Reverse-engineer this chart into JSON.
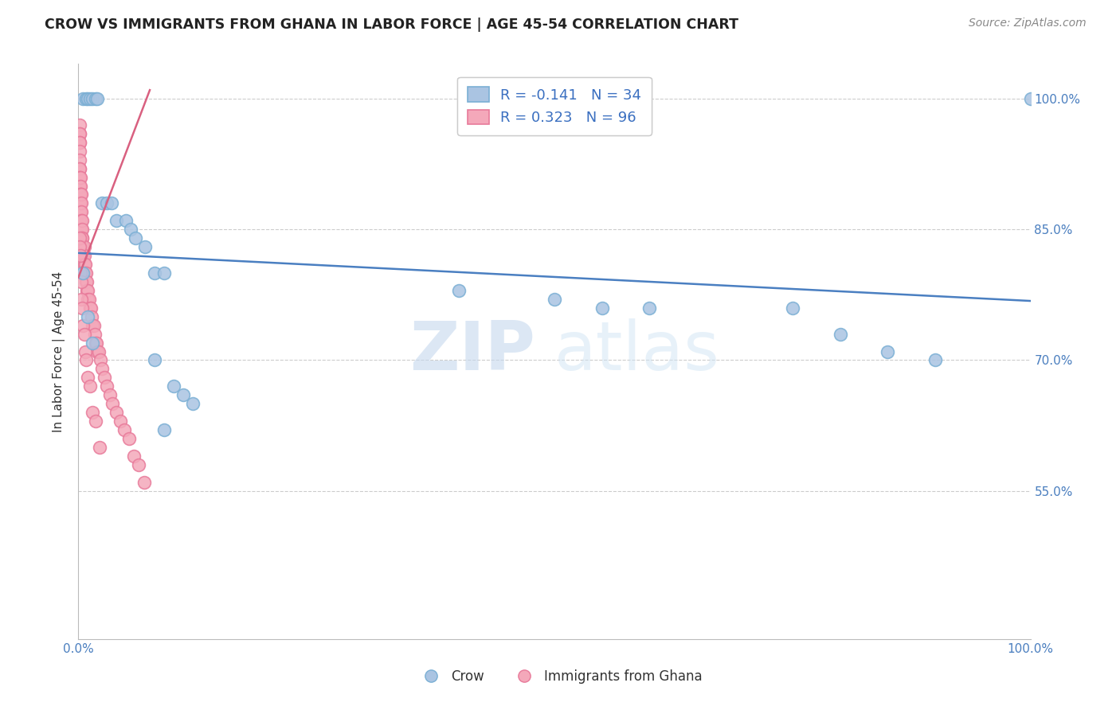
{
  "title": "CROW VS IMMIGRANTS FROM GHANA IN LABOR FORCE | AGE 45-54 CORRELATION CHART",
  "source": "Source: ZipAtlas.com",
  "ylabel": "In Labor Force | Age 45-54",
  "legend_label_crow": "Crow",
  "legend_label_ghana": "Immigrants from Ghana",
  "crow_R": -0.141,
  "crow_N": 34,
  "ghana_R": 0.323,
  "ghana_N": 96,
  "xlim": [
    0.0,
    1.0
  ],
  "ylim": [
    0.38,
    1.04
  ],
  "yticks": [
    0.55,
    0.7,
    0.85,
    1.0
  ],
  "ytick_labels": [
    "55.0%",
    "70.0%",
    "85.0%",
    "100.0%"
  ],
  "crow_color": "#aac4e2",
  "crow_edge_color": "#7aafd4",
  "ghana_color": "#f4a8ba",
  "ghana_edge_color": "#e87a9a",
  "crow_line_color": "#4a7fc1",
  "ghana_line_color": "#d96080",
  "background_color": "#ffffff",
  "watermark_zip": "ZIP",
  "watermark_atlas": "atlas",
  "crow_x": [
    0.005,
    0.008,
    0.01,
    0.012,
    0.015,
    0.018,
    0.02,
    0.025,
    0.03,
    0.035,
    0.04,
    0.05,
    0.055,
    0.06,
    0.07,
    0.08,
    0.09,
    0.1,
    0.11,
    0.12,
    0.005,
    0.01,
    0.015,
    0.08,
    0.09,
    0.4,
    0.5,
    0.55,
    0.6,
    0.75,
    0.8,
    0.85,
    0.9,
    1.0
  ],
  "crow_y": [
    1.0,
    1.0,
    1.0,
    1.0,
    1.0,
    1.0,
    1.0,
    0.88,
    0.88,
    0.88,
    0.86,
    0.86,
    0.85,
    0.84,
    0.83,
    0.8,
    0.8,
    0.67,
    0.66,
    0.65,
    0.8,
    0.75,
    0.72,
    0.7,
    0.62,
    0.78,
    0.77,
    0.76,
    0.76,
    0.76,
    0.73,
    0.71,
    0.7,
    1.0
  ],
  "ghana_x": [
    0.001,
    0.001,
    0.001,
    0.001,
    0.001,
    0.001,
    0.001,
    0.001,
    0.001,
    0.001,
    0.001,
    0.001,
    0.001,
    0.001,
    0.001,
    0.001,
    0.001,
    0.001,
    0.001,
    0.001,
    0.002,
    0.002,
    0.002,
    0.002,
    0.002,
    0.002,
    0.002,
    0.002,
    0.002,
    0.002,
    0.003,
    0.003,
    0.003,
    0.003,
    0.003,
    0.003,
    0.003,
    0.004,
    0.004,
    0.004,
    0.004,
    0.004,
    0.005,
    0.005,
    0.005,
    0.006,
    0.006,
    0.006,
    0.007,
    0.007,
    0.008,
    0.008,
    0.009,
    0.009,
    0.01,
    0.01,
    0.011,
    0.012,
    0.013,
    0.014,
    0.015,
    0.016,
    0.017,
    0.018,
    0.019,
    0.02,
    0.021,
    0.023,
    0.025,
    0.027,
    0.03,
    0.033,
    0.036,
    0.04,
    0.044,
    0.048,
    0.053,
    0.058,
    0.063,
    0.069,
    0.001,
    0.001,
    0.002,
    0.002,
    0.003,
    0.003,
    0.004,
    0.005,
    0.006,
    0.007,
    0.008,
    0.01,
    0.012,
    0.015,
    0.018,
    0.022
  ],
  "ghana_y": [
    0.97,
    0.96,
    0.96,
    0.95,
    0.95,
    0.94,
    0.93,
    0.92,
    0.92,
    0.91,
    0.91,
    0.9,
    0.9,
    0.89,
    0.89,
    0.88,
    0.88,
    0.87,
    0.86,
    0.85,
    0.91,
    0.9,
    0.89,
    0.89,
    0.88,
    0.87,
    0.87,
    0.86,
    0.85,
    0.84,
    0.89,
    0.88,
    0.87,
    0.86,
    0.85,
    0.85,
    0.84,
    0.86,
    0.85,
    0.84,
    0.84,
    0.83,
    0.83,
    0.82,
    0.82,
    0.83,
    0.82,
    0.81,
    0.81,
    0.8,
    0.8,
    0.79,
    0.79,
    0.78,
    0.78,
    0.77,
    0.77,
    0.76,
    0.76,
    0.75,
    0.74,
    0.74,
    0.73,
    0.72,
    0.72,
    0.71,
    0.71,
    0.7,
    0.69,
    0.68,
    0.67,
    0.66,
    0.65,
    0.64,
    0.63,
    0.62,
    0.61,
    0.59,
    0.58,
    0.56,
    0.84,
    0.83,
    0.82,
    0.8,
    0.79,
    0.77,
    0.76,
    0.74,
    0.73,
    0.71,
    0.7,
    0.68,
    0.67,
    0.64,
    0.63,
    0.6
  ],
  "crow_line_x": [
    0.0,
    1.0
  ],
  "crow_line_y": [
    0.823,
    0.768
  ],
  "ghana_line_x": [
    0.0,
    0.075
  ],
  "ghana_line_y": [
    0.795,
    1.01
  ]
}
